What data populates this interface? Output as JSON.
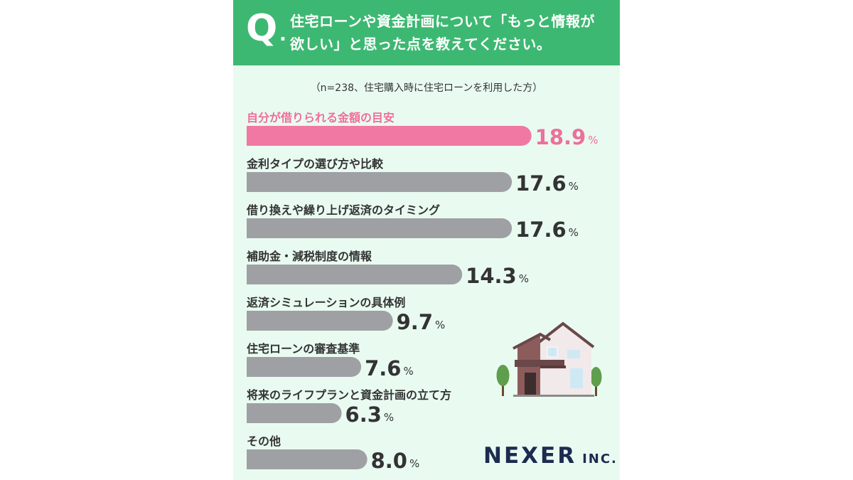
{
  "question": {
    "mark": "Q",
    "dot": ".",
    "line1": "住宅ローンや資金計画について「もっと情報が",
    "line2": "欲しい」と思った点を教えてください。"
  },
  "note": "（n=238、住宅購入時に住宅ローンを利用した方）",
  "colors": {
    "header": "#3db872",
    "background": "#e9fbf1",
    "highlight_bar": "#f178a2",
    "bar": "#9fa0a4",
    "highlight_text": "#ee6f9a",
    "text": "#333333"
  },
  "chart_data": {
    "type": "bar",
    "orientation": "horizontal",
    "unit": "%",
    "categories": [
      "自分が借りられる金額の目安",
      "金利タイプの選び方や比較",
      "借り換えや繰り上げ返済のタイミング",
      "補助金・減税制度の情報",
      "返済シミュレーションの具体例",
      "住宅ローンの審査基準",
      "将来のライフプランと資金計画の立て方",
      "その他"
    ],
    "values": [
      18.9,
      17.6,
      17.6,
      14.3,
      9.7,
      7.6,
      6.3,
      8.0
    ],
    "value_labels": [
      "18.9",
      "17.6",
      "17.6",
      "14.3",
      "9.7",
      "7.6",
      "6.3",
      "8.0"
    ],
    "highlight_index": 0
  },
  "logo": {
    "name": "NEXER",
    "suffix": "INC."
  }
}
